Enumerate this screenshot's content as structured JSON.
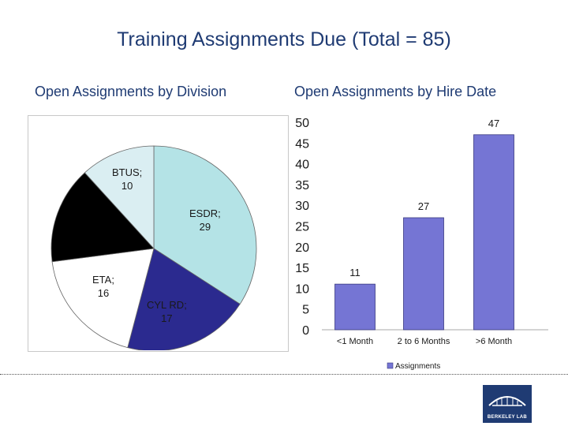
{
  "title": "Training Assignments Due (Total = 85)",
  "chart_data": [
    {
      "type": "pie",
      "title": "Open Assignments by Division",
      "categories": [
        "ESDR",
        "CYL RD",
        "ETA",
        "",
        "BTUS"
      ],
      "values": [
        29,
        17,
        16,
        13,
        10
      ],
      "labels": [
        "ESDR;",
        "29",
        "CYL RD;",
        "17",
        "ETA;",
        "16",
        "BTUS;",
        "10"
      ],
      "colors": [
        "#b4e3e6",
        "#2b2a8f",
        "#ffffff",
        "#000000",
        "#daeef2"
      ]
    },
    {
      "type": "bar",
      "title": "Open Assignments by Hire Date",
      "categories": [
        "<1 Month",
        "2 to 6 Months",
        ">6 Month"
      ],
      "series": [
        {
          "name": "Assignments",
          "values": [
            11,
            27,
            47
          ]
        }
      ],
      "data_labels": [
        "11",
        "27",
        "47"
      ],
      "y_ticks": [
        "50",
        "45",
        "40",
        "35",
        "30",
        "25",
        "20",
        "15",
        "10",
        "5",
        "0"
      ],
      "ylim": [
        0,
        50
      ],
      "legend": "bottom",
      "bar_color": "#7575d4"
    }
  ],
  "logo_text": "BERKELEY LAB"
}
